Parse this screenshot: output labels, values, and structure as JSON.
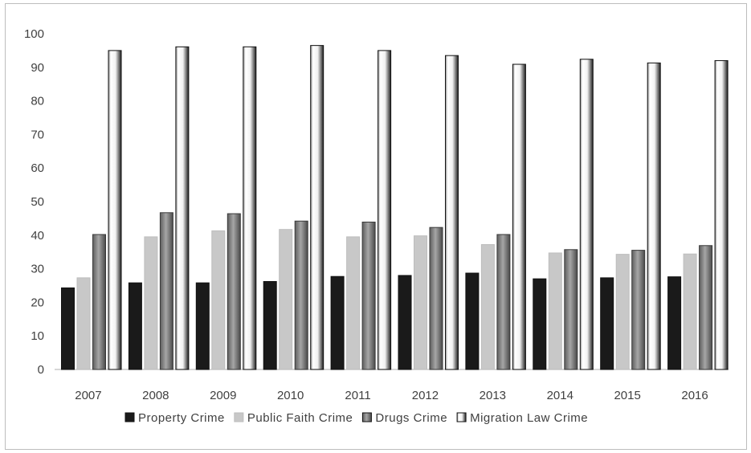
{
  "chart_data": {
    "type": "bar",
    "categories": [
      "2007",
      "2008",
      "2009",
      "2010",
      "2011",
      "2012",
      "2013",
      "2014",
      "2015",
      "2016"
    ],
    "series": [
      {
        "name": "Property Crime",
        "values": [
          24.3,
          25.8,
          25.8,
          26.2,
          27.7,
          28.0,
          28.7,
          27.0,
          27.3,
          27.6
        ]
      },
      {
        "name": "Public Faith Crime",
        "values": [
          27.3,
          39.5,
          41.3,
          41.7,
          39.5,
          39.8,
          37.2,
          34.7,
          34.3,
          34.4
        ]
      },
      {
        "name": "Drugs Crime",
        "values": [
          40.2,
          46.7,
          46.4,
          44.2,
          43.9,
          42.3,
          40.2,
          35.7,
          35.5,
          36.9
        ]
      },
      {
        "name": "Migration Law Crime",
        "values": [
          95.0,
          96.1,
          96.1,
          96.5,
          95.0,
          93.5,
          90.9,
          92.4,
          91.3,
          92.0
        ]
      }
    ],
    "y_ticks": [
      "0",
      "10",
      "20",
      "30",
      "40",
      "50",
      "60",
      "70",
      "80",
      "90",
      "100"
    ],
    "ylim": [
      0,
      100
    ],
    "grid": false,
    "legend_position": "bottom",
    "colors": {
      "Property Crime": "#1a1a1a",
      "Public Faith Crime": "#c8c8c8",
      "Drugs Crime": "#7a7a7a",
      "Migration Law Crime": "#ffffff"
    }
  }
}
